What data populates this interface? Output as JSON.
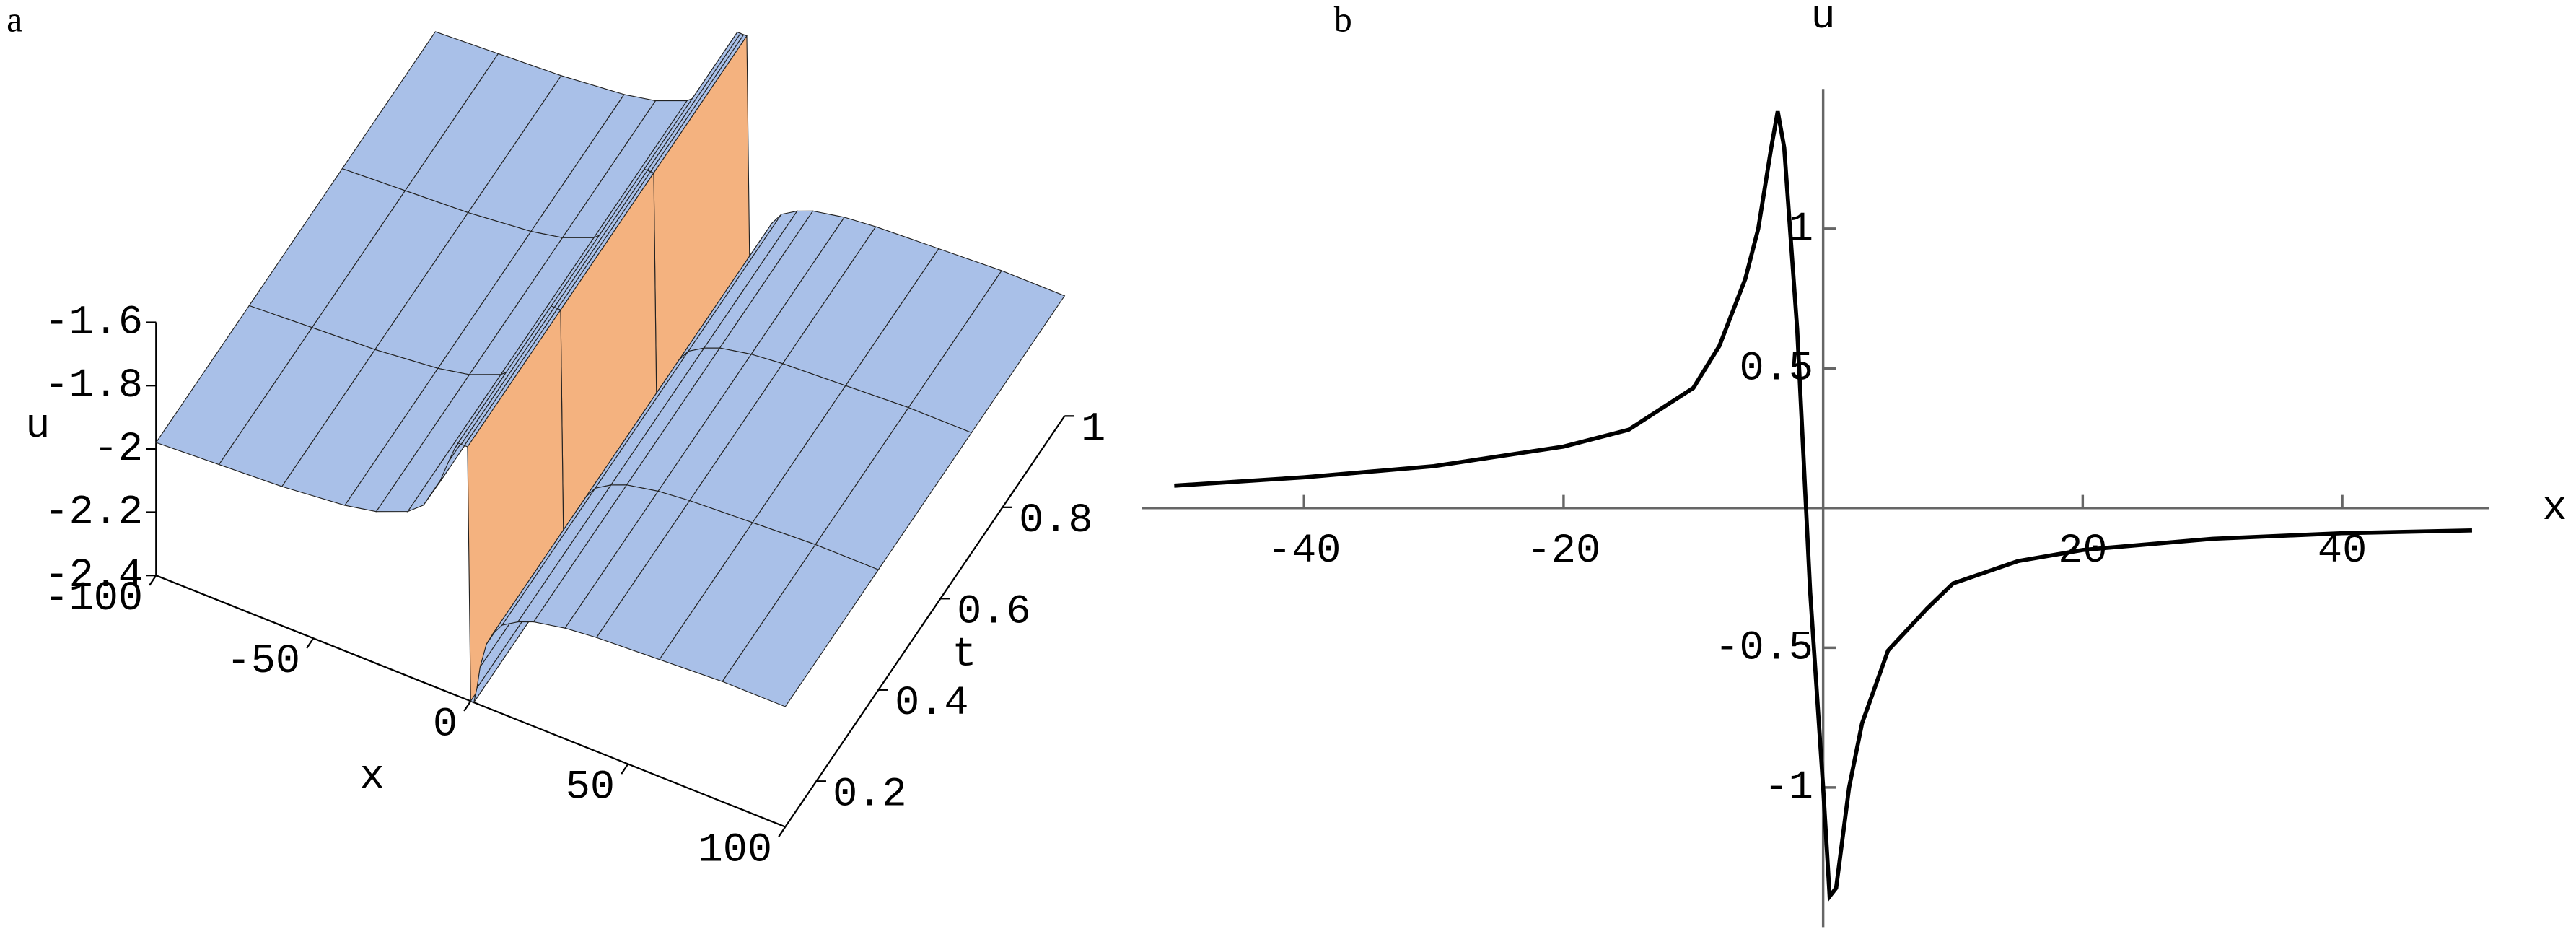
{
  "chart_data": [
    {
      "type": "surface",
      "panel": "a",
      "xlabel": "x",
      "tlabel": "t",
      "zlabel": "u",
      "x": [
        -100,
        -80,
        -60,
        -40,
        -30,
        -20,
        -15,
        -10,
        -7,
        -5,
        -4,
        -3,
        -2,
        -1,
        0,
        1,
        2,
        3,
        5,
        7,
        10,
        15,
        20,
        30,
        40,
        60,
        80,
        100
      ],
      "t": [
        0.1,
        0.4,
        0.7,
        1
      ],
      "z": [
        [
          -1.98,
          -1.97,
          -1.96,
          -1.94,
          -1.92,
          -1.88,
          -1.84,
          -1.75,
          -1.67,
          -1.62,
          -1.6,
          -1.6,
          -1.6,
          -1.6,
          -2.4,
          -2.4,
          -2.35,
          -2.28,
          -2.2,
          -2.16,
          -2.12,
          -2.09,
          -2.07,
          -2.05,
          -2.04,
          -2.03,
          -2.02,
          -2.02
        ],
        [
          -1.98,
          -1.97,
          -1.96,
          -1.94,
          -1.92,
          -1.88,
          -1.84,
          -1.75,
          -1.67,
          -1.62,
          -1.6,
          -1.6,
          -1.6,
          -1.6,
          -2.4,
          -2.4,
          -2.35,
          -2.28,
          -2.2,
          -2.16,
          -2.12,
          -2.09,
          -2.07,
          -2.05,
          -2.04,
          -2.03,
          -2.02,
          -2.02
        ],
        [
          -1.98,
          -1.97,
          -1.96,
          -1.94,
          -1.92,
          -1.88,
          -1.84,
          -1.75,
          -1.67,
          -1.62,
          -1.6,
          -1.6,
          -1.6,
          -1.6,
          -2.4,
          -2.4,
          -2.35,
          -2.28,
          -2.2,
          -2.16,
          -2.12,
          -2.09,
          -2.07,
          -2.05,
          -2.04,
          -2.03,
          -2.02,
          -2.02
        ],
        [
          -1.98,
          -1.97,
          -1.96,
          -1.94,
          -1.92,
          -1.88,
          -1.84,
          -1.75,
          -1.67,
          -1.62,
          -1.6,
          -1.6,
          -1.6,
          -1.6,
          -2.4,
          -2.4,
          -2.35,
          -2.28,
          -2.2,
          -2.16,
          -2.12,
          -2.09,
          -2.07,
          -2.05,
          -2.04,
          -2.03,
          -2.02,
          -2.02
        ]
      ],
      "xlim": [
        -100,
        100
      ],
      "tlim": [
        0.1,
        1
      ],
      "zlim": [
        -2.4,
        -1.6
      ],
      "xticks": [
        -100,
        -50,
        0,
        50,
        100
      ],
      "tticks": [
        0.2,
        0.4,
        0.6,
        0.8,
        1
      ],
      "zticks": [
        -2.4,
        -2.2,
        -2,
        -1.8,
        -1.6
      ],
      "color": "#a9c0e8",
      "wall_color": "#f4b27f"
    },
    {
      "type": "line",
      "panel": "b",
      "xlabel": "x",
      "ylabel": "u",
      "x": [
        -50,
        -40,
        -30,
        -20,
        -15,
        -10,
        -8,
        -6,
        -5,
        -4,
        -3.5,
        -3,
        -2,
        -1,
        0,
        0.5,
        1,
        2,
        3,
        5,
        8,
        10,
        15,
        20,
        30,
        40,
        50
      ],
      "values": [
        0.08,
        0.11,
        0.15,
        0.22,
        0.28,
        0.43,
        0.58,
        0.82,
        1.0,
        1.29,
        1.42,
        1.29,
        0.64,
        -0.3,
        -1.0,
        -1.39,
        -1.36,
        -1.0,
        -0.77,
        -0.51,
        -0.36,
        -0.27,
        -0.19,
        -0.15,
        -0.11,
        -0.09,
        -0.08
      ],
      "xlim": [
        -52.5,
        51.3
      ],
      "ylim": [
        -1.5,
        1.5
      ],
      "xticks": [
        -40,
        -20,
        20,
        40
      ],
      "yticks": [
        -1,
        -0.5,
        0.5,
        1
      ],
      "color": "#000000"
    }
  ]
}
